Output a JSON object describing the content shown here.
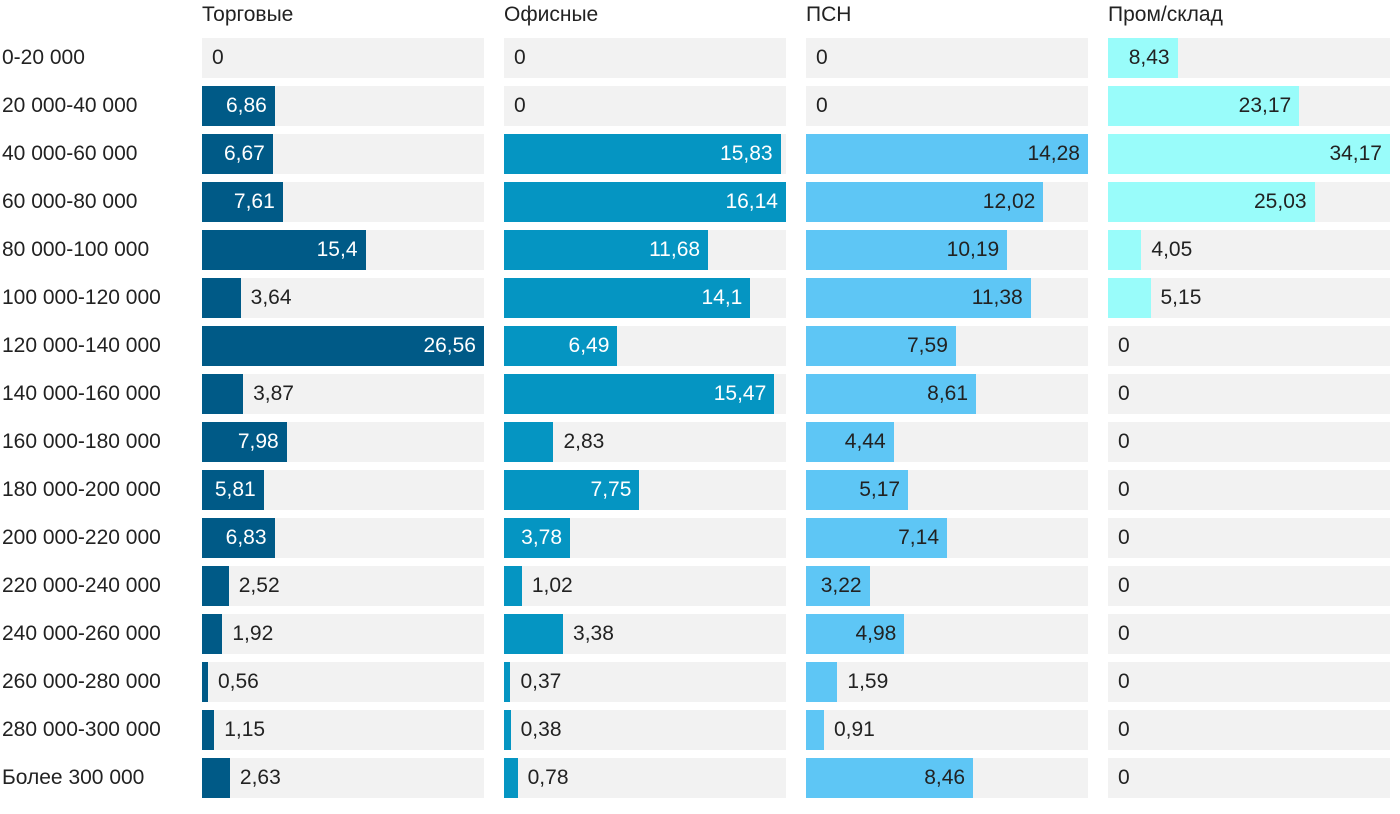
{
  "chart_data": {
    "type": "bar",
    "orientation": "horizontal",
    "layout": "small-multiples",
    "categories": [
      "0-20 000",
      "20 000-40 000",
      "40 000-60 000",
      "60 000-80 000",
      "80 000-100 000",
      "100 000-120 000",
      "120 000-140 000",
      "140 000-160 000",
      "160 000-180 000",
      "180 000-200 000",
      "200 000-220 000",
      "220 000-240 000",
      "240 000-260 000",
      "260 000-280 000",
      "280 000-300 000",
      "Более 300 000"
    ],
    "series": [
      {
        "name": "Торговые",
        "color": "#005a87",
        "max": 26.56,
        "values": [
          0,
          6.86,
          6.67,
          7.61,
          15.4,
          3.64,
          26.56,
          3.87,
          7.98,
          5.81,
          6.83,
          2.52,
          1.92,
          0.56,
          1.15,
          2.63
        ],
        "labels": [
          "0",
          "6,86",
          "6,67",
          "7,61",
          "15,4",
          "3,64",
          "26,56",
          "3,87",
          "7,98",
          "5,81",
          "6,83",
          "2,52",
          "1,92",
          "0,56",
          "1,15",
          "2,63"
        ]
      },
      {
        "name": "Офисные",
        "color": "#0595c2",
        "max": 16.14,
        "values": [
          0,
          0,
          15.83,
          16.14,
          11.68,
          14.1,
          6.49,
          15.47,
          2.83,
          7.75,
          3.78,
          1.02,
          3.38,
          0.37,
          0.38,
          0.78
        ],
        "labels": [
          "0",
          "0",
          "15,83",
          "16,14",
          "11,68",
          "14,1",
          "6,49",
          "15,47",
          "2,83",
          "7,75",
          "3,78",
          "1,02",
          "3,38",
          "0,37",
          "0,38",
          "0,78"
        ]
      },
      {
        "name": "ПСН",
        "color": "#5ec6f5",
        "max": 14.28,
        "values": [
          0,
          0,
          14.28,
          12.02,
          10.19,
          11.38,
          7.59,
          8.61,
          4.44,
          5.17,
          7.14,
          3.22,
          4.98,
          1.59,
          0.91,
          8.46
        ],
        "labels": [
          "0",
          "0",
          "14,28",
          "12,02",
          "10,19",
          "11,38",
          "7,59",
          "8,61",
          "4,44",
          "5,17",
          "7,14",
          "3,22",
          "4,98",
          "1,59",
          "0,91",
          "8,46"
        ]
      },
      {
        "name": "Пром/склад",
        "color": "#99fcfa",
        "max": 34.17,
        "values": [
          8.43,
          23.17,
          34.17,
          25.03,
          4.05,
          5.15,
          0,
          0,
          0,
          0,
          0,
          0,
          0,
          0,
          0,
          0
        ],
        "labels": [
          "8,43",
          "23,17",
          "34,17",
          "25,03",
          "4,05",
          "5,15",
          "0",
          "0",
          "0",
          "0",
          "0",
          "0",
          "0",
          "0",
          "0",
          "0"
        ]
      }
    ],
    "grid": false,
    "legend": "none"
  }
}
